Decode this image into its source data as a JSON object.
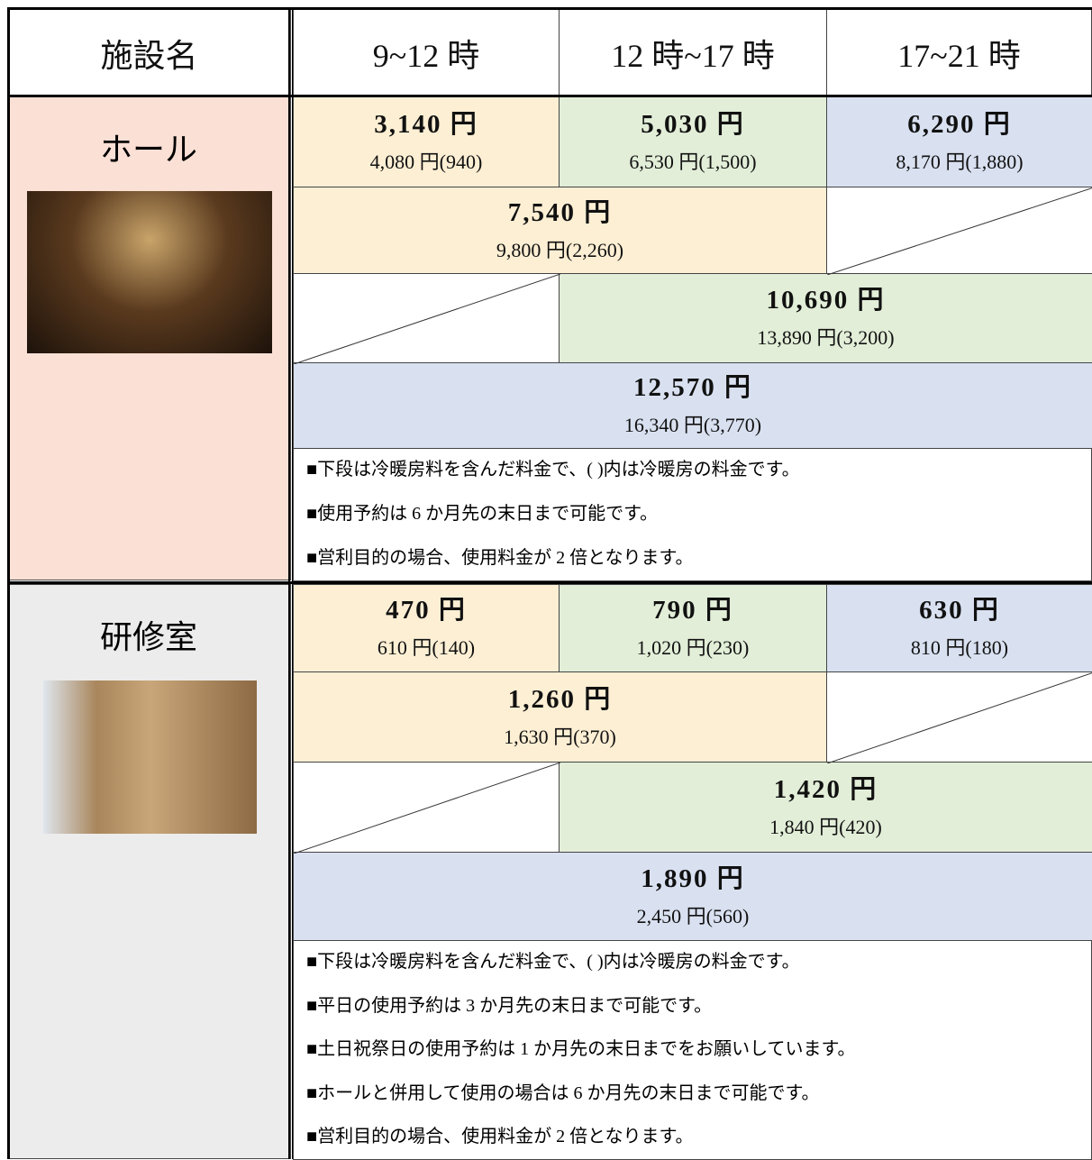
{
  "header": {
    "facility": "施設名",
    "slots": [
      "9~12 時",
      "12 時~17 時",
      "17~21 時"
    ]
  },
  "facilities": [
    {
      "name": "ホール",
      "rates": [
        {
          "price": "3,140 円",
          "with_ac": "4,080 円(940)"
        },
        {
          "price": "5,030 円",
          "with_ac": "6,530 円(1,500)"
        },
        {
          "price": "6,290 円",
          "with_ac": "8,170 円(1,880)"
        },
        {
          "price": "7,540 円",
          "with_ac": "9,800 円(2,260)"
        },
        {
          "price": "10,690 円",
          "with_ac": "13,890 円(3,200)"
        },
        {
          "price": "12,570 円",
          "with_ac": "16,340 円(3,770)"
        }
      ],
      "notes": [
        "■下段は冷暖房料を含んだ料金で、( )内は冷暖房の料金です。",
        "■使用予約は 6 か月先の末日まで可能です。",
        "■営利目的の場合、使用料金が 2 倍となります。"
      ]
    },
    {
      "name": "研修室",
      "rates": [
        {
          "price": "470 円",
          "with_ac": "610 円(140)"
        },
        {
          "price": "790 円",
          "with_ac": "1,020 円(230)"
        },
        {
          "price": "630 円",
          "with_ac": "810 円(180)"
        },
        {
          "price": "1,260 円",
          "with_ac": "1,630 円(370)"
        },
        {
          "price": "1,420 円",
          "with_ac": "1,840 円(420)"
        },
        {
          "price": "1,890 円",
          "with_ac": "2,450 円(560)"
        }
      ],
      "notes": [
        "■下段は冷暖房料を含んだ料金で、( )内は冷暖房の料金です。",
        "■平日の使用予約は 3 か月先の末日まで可能です。",
        "■土日祝祭日の使用予約は 1 か月先の末日までをお願いしています。",
        "■ホールと併用して使用の場合は 6 か月先の末日まで可能です。",
        "■営利目的の場合、使用料金が 2 倍となります。"
      ]
    }
  ]
}
